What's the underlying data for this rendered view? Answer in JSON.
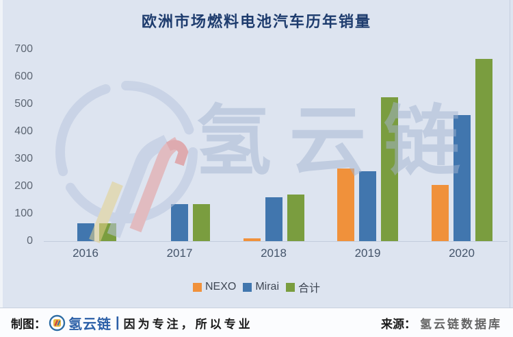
{
  "title": "欧洲市场燃料电池汽车历年销量",
  "chart_data": {
    "type": "bar",
    "categories": [
      "2016",
      "2017",
      "2018",
      "2019",
      "2020"
    ],
    "series": [
      {
        "name": "NEXO",
        "color": "#F0913B",
        "values": [
          0,
          0,
          10,
          265,
          205
        ]
      },
      {
        "name": "Mirai",
        "color": "#4176AE",
        "values": [
          65,
          135,
          160,
          255,
          460
        ]
      },
      {
        "name": "合计",
        "color": "#7A9D3F",
        "values": [
          65,
          135,
          170,
          525,
          665
        ]
      }
    ],
    "title": "欧洲市场燃料电池汽车历年销量",
    "xlabel": "",
    "ylabel": "",
    "ylim": [
      0,
      700
    ],
    "ytick_step": 100,
    "grid": false,
    "legend_position": "bottom"
  },
  "watermark": {
    "text": "氢云链"
  },
  "footer": {
    "left_prefix": "制图：",
    "brand": "氢云链",
    "divider": "|",
    "slogan": "因为专注，所以专业",
    "right_prefix": "来源：",
    "right_source": "氢云链数据库"
  },
  "colors": {
    "background": "#dde4f0",
    "title_text": "#1e3c6e",
    "axis_text": "#5d6673",
    "xlabel_text": "#44546a",
    "baseline": "#c3cddd",
    "footer_brand_blue": "#2b5fa7",
    "watermark": "#a4b3d0"
  }
}
